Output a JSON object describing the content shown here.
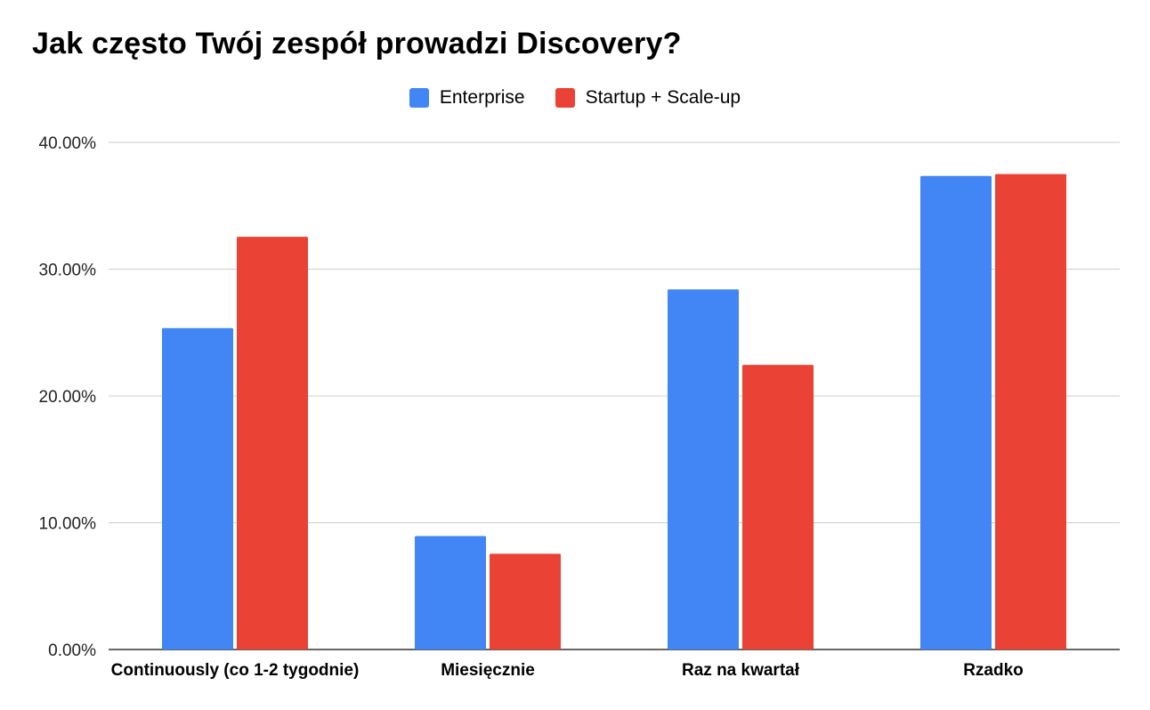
{
  "chart_data": {
    "type": "bar",
    "title": "Jak często Twój zespół prowadzi Discovery?",
    "xlabel": "",
    "ylabel": "",
    "categories": [
      "Continuously (co 1-2 tygodnie)",
      "Miesięcznie",
      "Raz na kwartał",
      "Rzadko"
    ],
    "series": [
      {
        "name": "Enterprise",
        "color": "#4285F4",
        "values": [
          25.35,
          8.95,
          28.4,
          37.35
        ]
      },
      {
        "name": "Startup + Scale-up",
        "color": "#EA4335",
        "values": [
          32.55,
          7.55,
          22.45,
          37.5
        ]
      }
    ],
    "ylim": [
      0,
      40
    ],
    "yticks": [
      0,
      10,
      20,
      30,
      40
    ],
    "ytick_labels": [
      "0.00%",
      "10.00%",
      "20.00%",
      "30.00%",
      "40.00%"
    ],
    "grid": true,
    "legend_position": "top-center"
  }
}
